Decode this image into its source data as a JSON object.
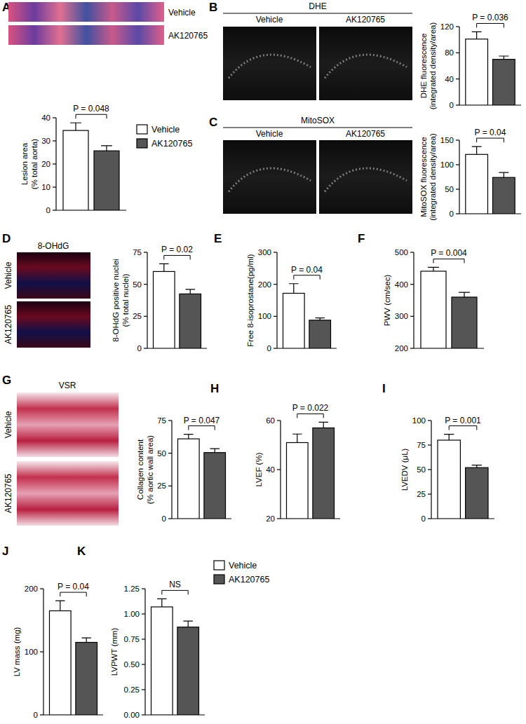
{
  "chart_data": [
    {
      "type": "bar",
      "title": "A",
      "image_labels": [
        "Vehicle",
        "AK120765"
      ],
      "y_label": "Lesion area\n(% total aorta)",
      "annotation": "P = 0.048",
      "ylim": [
        0,
        40
      ],
      "yticks": [
        0,
        10,
        20,
        30,
        40
      ],
      "legend": "right",
      "series": [
        {
          "name": "Vehicle",
          "color": "#ffffff",
          "values": [
            34.5
          ],
          "errors": [
            3.3
          ]
        },
        {
          "name": "AK120765",
          "color": "#555555",
          "values": [
            25.7
          ],
          "errors": [
            2.2
          ]
        }
      ]
    },
    {
      "type": "bar",
      "title": "B",
      "image_labels": [
        "DHE",
        "Vehicle",
        "AK120765"
      ],
      "y_label": "DHE fluorescence\n(integrated density/area)",
      "annotation": "P = 0.036",
      "ylim": [
        0,
        120
      ],
      "yticks": [
        0,
        40,
        80,
        120
      ],
      "series": [
        {
          "color": "#ffffff",
          "values": [
            101
          ],
          "errors": [
            11
          ]
        },
        {
          "color": "#555555",
          "values": [
            70
          ],
          "errors": [
            5
          ]
        }
      ]
    },
    {
      "type": "bar",
      "title": "C",
      "image_labels": [
        "MitoSOX",
        "Vehicle",
        "AK120765"
      ],
      "y_label": "MitoSOX fluorescence\n(integrated density/area)",
      "annotation": "P = 0.04",
      "ylim": [
        0,
        150
      ],
      "yticks": [
        0,
        50,
        100,
        150
      ],
      "series": [
        {
          "color": "#ffffff",
          "values": [
            121
          ],
          "errors": [
            16
          ]
        },
        {
          "color": "#555555",
          "values": [
            74
          ],
          "errors": [
            10
          ]
        }
      ]
    },
    {
      "type": "bar",
      "title": "D",
      "image_labels": [
        "8-OHdG",
        "Vehicle",
        "AK120765"
      ],
      "y_label": "8-OHdG positive nuclei\n(% total nuclei)",
      "annotation": "P = 0.02",
      "ylim": [
        0,
        75
      ],
      "yticks": [
        0,
        25,
        50,
        75
      ],
      "series": [
        {
          "color": "#ffffff",
          "values": [
            60
          ],
          "errors": [
            6
          ]
        },
        {
          "color": "#555555",
          "values": [
            42.5
          ],
          "errors": [
            3.5
          ]
        }
      ]
    },
    {
      "type": "bar",
      "title": "E",
      "y_label": "Free 8-isoprostane(pg/ml)",
      "annotation": "P = 0.04",
      "ylim": [
        0,
        300
      ],
      "yticks": [
        0,
        100,
        200,
        300
      ],
      "series": [
        {
          "color": "#ffffff",
          "values": [
            172
          ],
          "errors": [
            30
          ]
        },
        {
          "color": "#555555",
          "values": [
            88
          ],
          "errors": [
            7
          ]
        }
      ]
    },
    {
      "type": "bar",
      "title": "F",
      "y_label": "PWV (cm/sec)",
      "annotation": "P = 0.004",
      "ylim": [
        200,
        500
      ],
      "yticks": [
        200,
        300,
        400,
        500
      ],
      "series": [
        {
          "color": "#ffffff",
          "values": [
            441
          ],
          "errors": [
            12
          ]
        },
        {
          "color": "#555555",
          "values": [
            360
          ],
          "errors": [
            15
          ]
        }
      ]
    },
    {
      "type": "bar",
      "title": "G",
      "image_labels": [
        "VSR",
        "Vehicle",
        "AK120765"
      ],
      "y_label": "Collagen content\n(% aortic wall area)",
      "annotation": "P = 0.047",
      "ylim": [
        0,
        75
      ],
      "yticks": [
        0,
        25,
        50,
        75
      ],
      "series": [
        {
          "color": "#ffffff",
          "values": [
            61
          ],
          "errors": [
            3.5
          ]
        },
        {
          "color": "#555555",
          "values": [
            50.5
          ],
          "errors": [
            3
          ]
        }
      ]
    },
    {
      "type": "bar",
      "title": "H",
      "y_label": "LVEF (%)",
      "annotation": "P = 0.022",
      "ylim": [
        20,
        60
      ],
      "yticks": [
        20,
        40,
        60
      ],
      "series": [
        {
          "color": "#ffffff",
          "values": [
            51
          ],
          "errors": [
            3.5
          ]
        },
        {
          "color": "#555555",
          "values": [
            57
          ],
          "errors": [
            2.3
          ]
        }
      ]
    },
    {
      "type": "bar",
      "title": "I",
      "y_label": "LVEDV (μL)",
      "annotation": "P = 0.001",
      "ylim": [
        0,
        100
      ],
      "yticks": [
        0,
        25,
        50,
        75,
        100
      ],
      "series": [
        {
          "color": "#ffffff",
          "values": [
            80
          ],
          "errors": [
            6
          ]
        },
        {
          "color": "#555555",
          "values": [
            52
          ],
          "errors": [
            2.5
          ]
        }
      ]
    },
    {
      "type": "bar",
      "title": "J",
      "y_label": "LV mass (mg)",
      "annotation": "P = 0.04",
      "ylim": [
        0,
        200
      ],
      "yticks": [
        0,
        100,
        200
      ],
      "series": [
        {
          "color": "#ffffff",
          "values": [
            165
          ],
          "errors": [
            16
          ]
        },
        {
          "color": "#555555",
          "values": [
            115
          ],
          "errors": [
            7
          ]
        }
      ]
    },
    {
      "type": "bar",
      "title": "K",
      "y_label": "LVPWT (mm)",
      "annotation": "NS",
      "ylim": [
        0,
        1.25
      ],
      "legend": "right",
      "yticks": [
        {
          "value": 0,
          "label": "0.00"
        },
        {
          "value": 0.25,
          "label": "0.25"
        },
        {
          "value": 0.5,
          "label": "0.50"
        },
        {
          "value": 0.75,
          "label": "0.75"
        },
        {
          "value": 1,
          "label": "1.00"
        },
        {
          "value": 1.25,
          "label": "1.25"
        }
      ],
      "series": [
        {
          "name": "Vehicle",
          "color": "#ffffff",
          "values": [
            1.07
          ],
          "errors": [
            0.08
          ]
        },
        {
          "name": "AK120765",
          "color": "#555555",
          "values": [
            0.87
          ],
          "errors": [
            0.06
          ]
        }
      ]
    }
  ]
}
